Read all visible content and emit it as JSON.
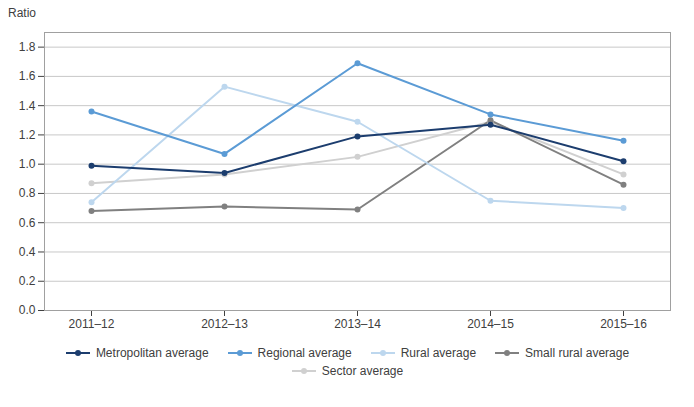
{
  "chart_data": {
    "type": "line",
    "ylabel": "Ratio",
    "categories": [
      "2011–12",
      "2012–13",
      "2013–14",
      "2014–15",
      "2015–16"
    ],
    "series": [
      {
        "name": "Metropolitan average",
        "color": "#1c3d6e",
        "values": [
          0.99,
          0.94,
          1.19,
          1.27,
          1.02
        ]
      },
      {
        "name": "Regional average",
        "color": "#5b9bd5",
        "values": [
          1.36,
          1.07,
          1.69,
          1.34,
          1.16
        ]
      },
      {
        "name": "Rural average",
        "color": "#bdd7ee",
        "values": [
          0.74,
          1.53,
          1.29,
          0.75,
          0.7
        ]
      },
      {
        "name": "Small rural average",
        "color": "#808080",
        "values": [
          0.68,
          0.71,
          0.69,
          1.3,
          0.86
        ]
      },
      {
        "name": "Sector average",
        "color": "#d0d0d0",
        "values": [
          0.87,
          0.93,
          1.05,
          1.29,
          0.93
        ]
      }
    ],
    "ylim": [
      0.0,
      1.9
    ],
    "yticks": [
      {
        "value": 0,
        "label": "0.0"
      },
      0.2,
      0.4,
      0.6,
      0.8,
      {
        "value": 1,
        "label": "1.0"
      },
      1.2,
      1.4,
      1.6,
      1.8
    ],
    "grid": true,
    "legend": "bottom",
    "marker": "circle"
  }
}
